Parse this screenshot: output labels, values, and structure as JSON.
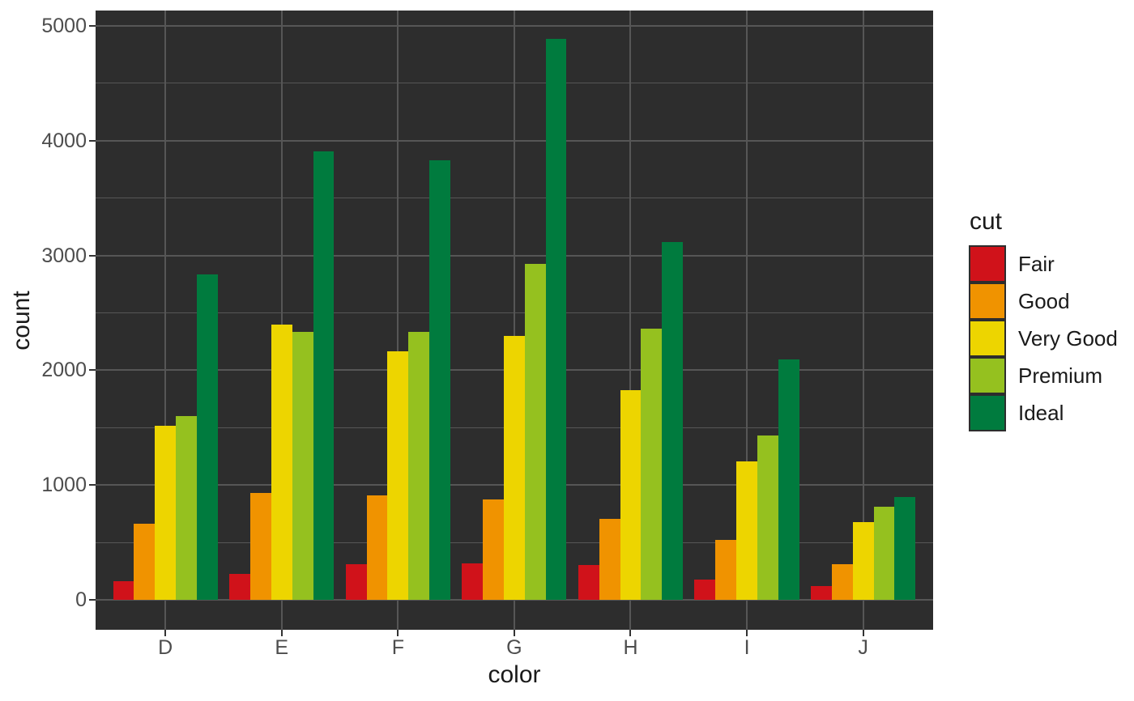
{
  "chart_data": {
    "type": "bar",
    "title": "",
    "xlabel": "color",
    "ylabel": "count",
    "legend_title": "cut",
    "legend_position": "right",
    "grid": true,
    "categories": [
      "D",
      "E",
      "F",
      "G",
      "H",
      "I",
      "J"
    ],
    "series": [
      {
        "name": "Fair",
        "color": "#d0121a",
        "values": [
          163,
          224,
          312,
          314,
          303,
          175,
          119
        ]
      },
      {
        "name": "Good",
        "color": "#f09300",
        "values": [
          662,
          933,
          909,
          871,
          702,
          522,
          307
        ]
      },
      {
        "name": "Very Good",
        "color": "#edd500",
        "values": [
          1513,
          2400,
          2164,
          2299,
          1824,
          1204,
          678
        ]
      },
      {
        "name": "Premium",
        "color": "#95c11f",
        "values": [
          1603,
          2337,
          2331,
          2924,
          2360,
          1428,
          808
        ]
      },
      {
        "name": "Ideal",
        "color": "#007b3e",
        "values": [
          2834,
          3903,
          3826,
          4884,
          3115,
          2093,
          896
        ]
      }
    ],
    "y_ticks": [
      0,
      1000,
      2000,
      3000,
      4000,
      5000
    ],
    "y_minor_ticks": [
      500,
      1500,
      2500,
      3500,
      4500
    ],
    "ylim": [
      -260,
      5133
    ],
    "style": {
      "panel_bg": "#2d2d2d",
      "grid_color": "#565656",
      "tick_color": "#333333",
      "tick_label_color": "#4d4d4d",
      "axis_title_color": "#1a1a1a",
      "legend_text_color": "#1a1a1a",
      "key_border_color": "#2d2d2d",
      "background": "#ffffff"
    }
  }
}
